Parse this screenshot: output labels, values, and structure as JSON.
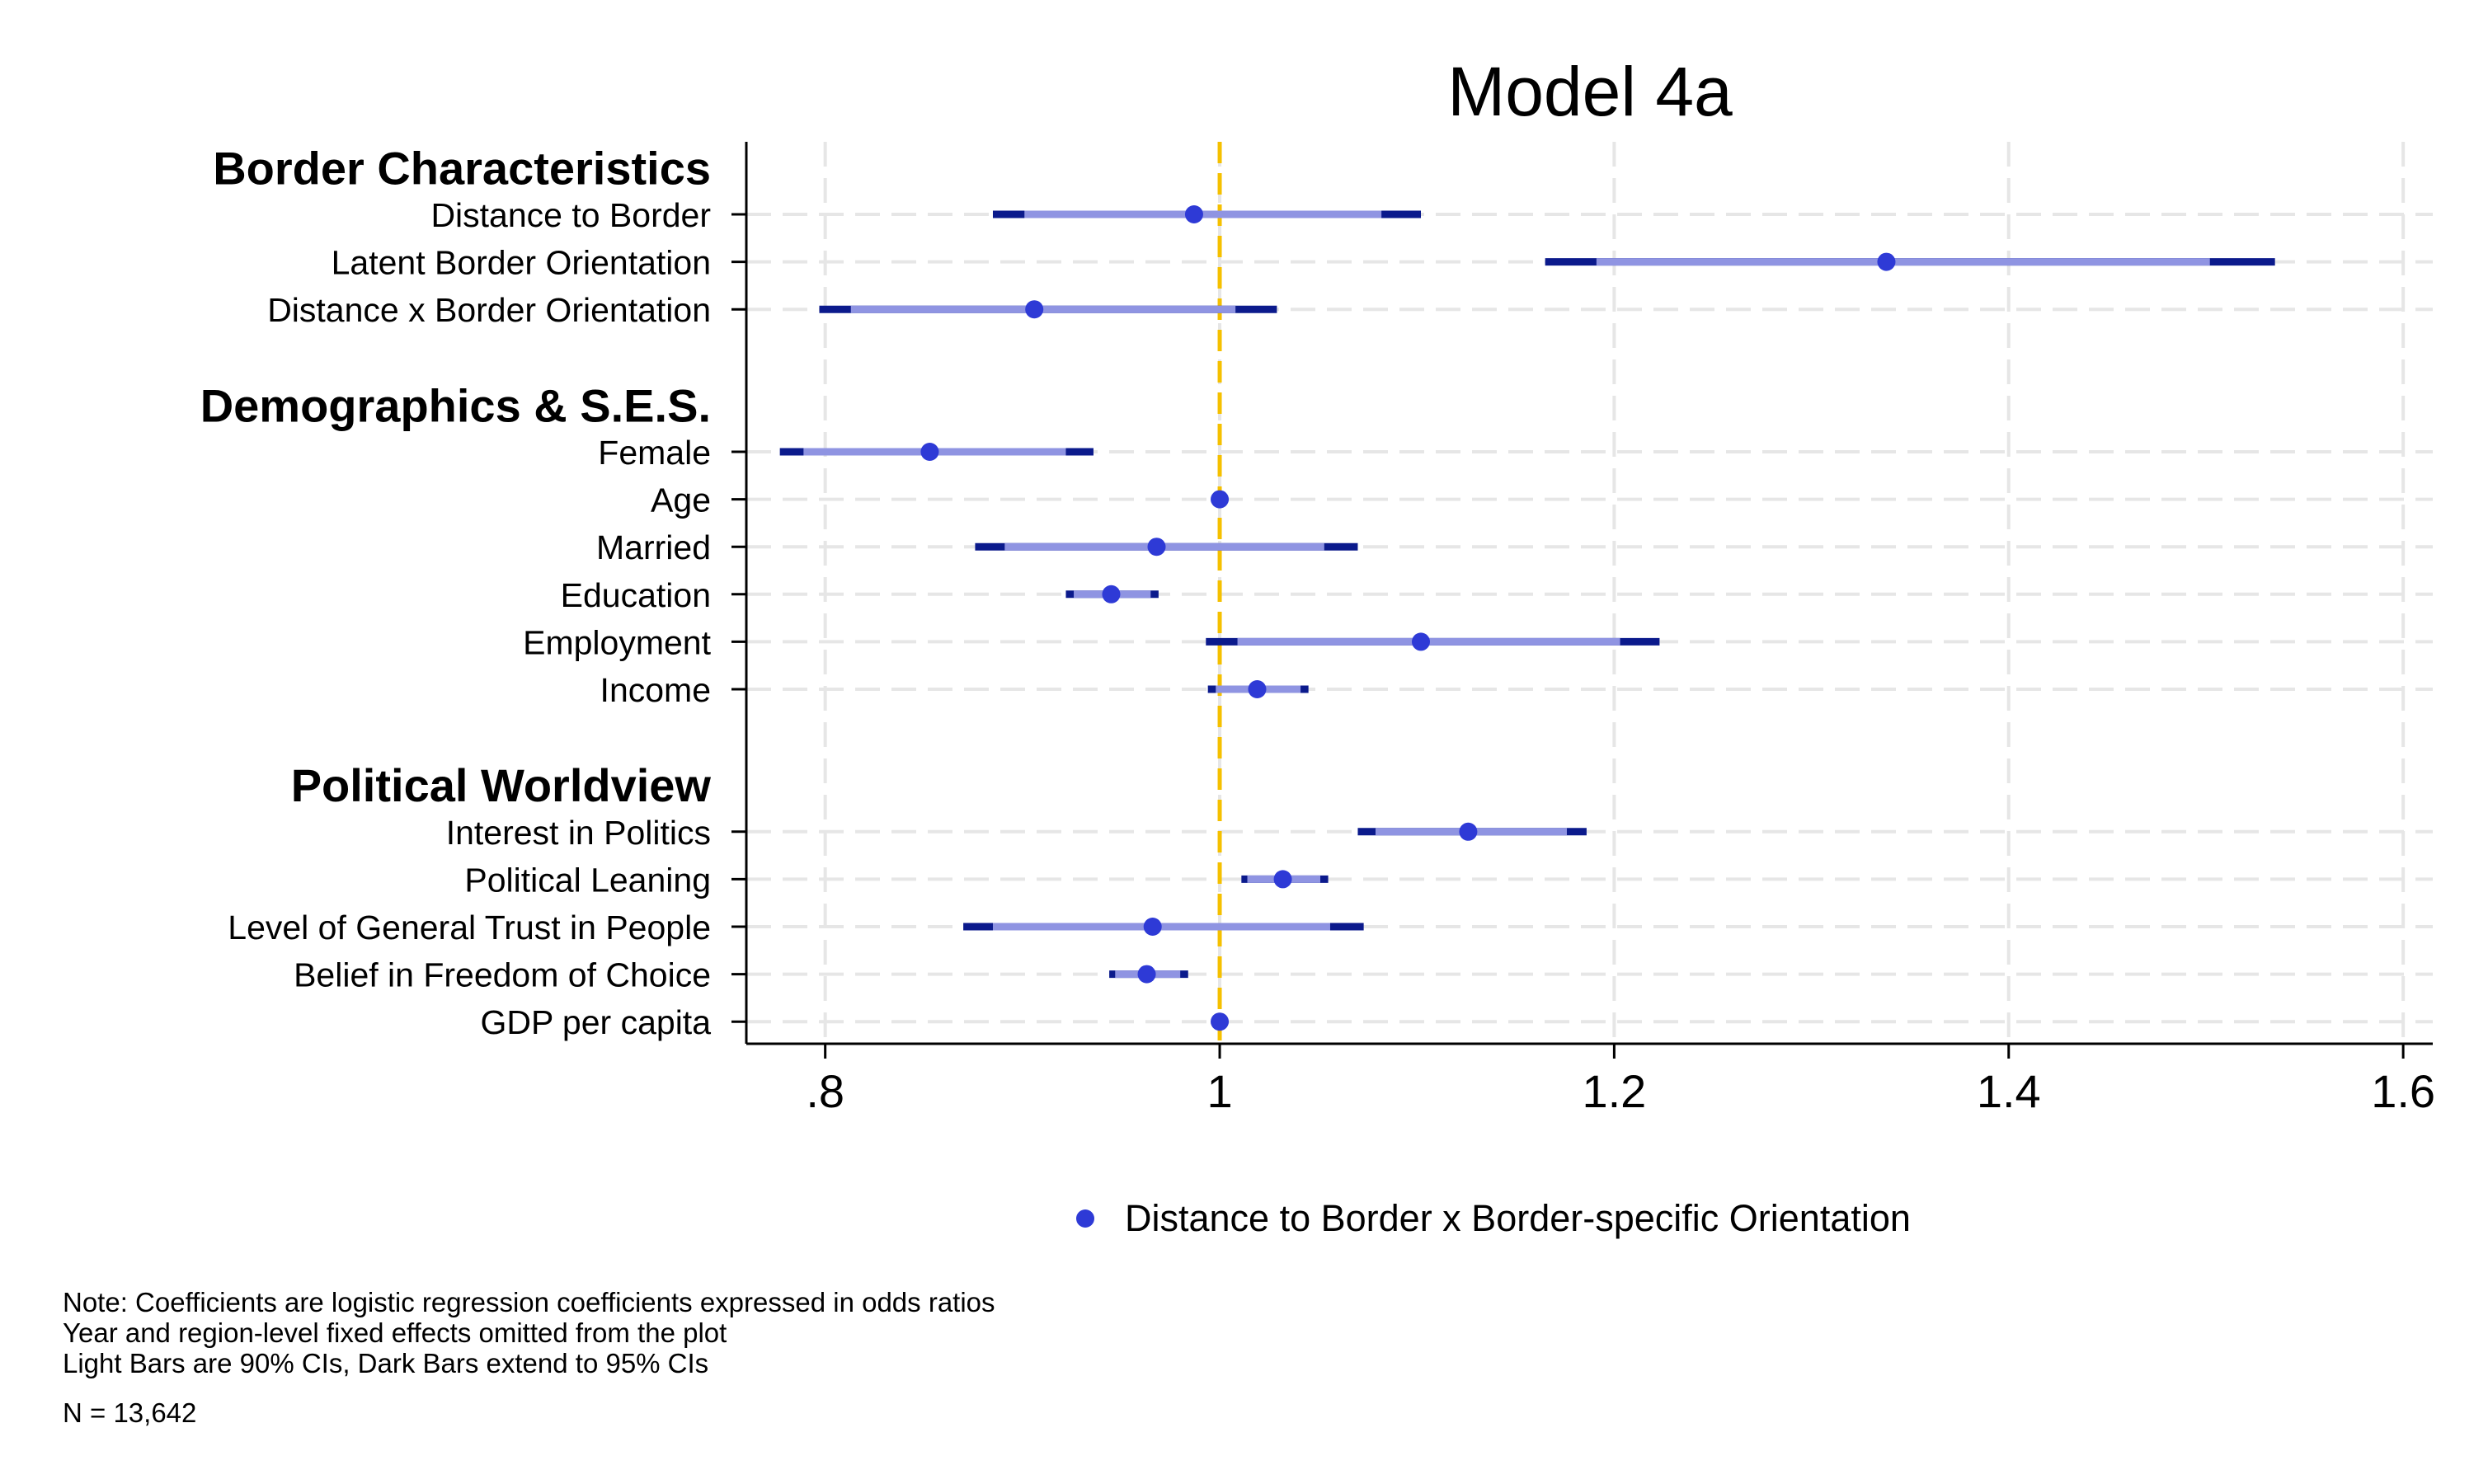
{
  "chart_data": {
    "type": "coefficient_plot",
    "title": "Model 4a",
    "x_ticks": [
      {
        "value": 0.8,
        "label": ".8"
      },
      {
        "value": 1.0,
        "label": "1"
      },
      {
        "value": 1.2,
        "label": "1.2"
      },
      {
        "value": 1.4,
        "label": "1.4"
      },
      {
        "value": 1.6,
        "label": "1.6"
      }
    ],
    "xlim": [
      0.76,
      1.615
    ],
    "reference_line": 1,
    "legend": {
      "label": "Distance to Border x Border-specific Orientation",
      "position": "bottom"
    },
    "groups": [
      {
        "heading": "Border Characteristics",
        "rows": [
          {
            "label": "Distance to Border",
            "estimate": 0.987,
            "ci90": [
              0.901,
              1.082
            ],
            "ci95": [
              0.885,
              1.102
            ]
          },
          {
            "label": "Latent Border Orientation",
            "estimate": 1.338,
            "ci90": [
              1.191,
              1.502
            ],
            "ci95": [
              1.165,
              1.535
            ]
          },
          {
            "label": "Distance x Border Orientation",
            "estimate": 0.906,
            "ci90": [
              0.813,
              1.008
            ],
            "ci95": [
              0.797,
              1.029
            ]
          }
        ]
      },
      {
        "heading": "Demographics & S.E.S.",
        "rows": [
          {
            "label": "Female",
            "estimate": 0.853,
            "ci90": [
              0.789,
              0.922
            ],
            "ci95": [
              0.777,
              0.936
            ]
          },
          {
            "label": "Age",
            "estimate": 1.0,
            "ci90": [
              0.999,
              1.001
            ],
            "ci95": [
              0.998,
              1.002
            ]
          },
          {
            "label": "Married",
            "estimate": 0.968,
            "ci90": [
              0.891,
              1.053
            ],
            "ci95": [
              0.876,
              1.07
            ]
          },
          {
            "label": "Education",
            "estimate": 0.945,
            "ci90": [
              0.926,
              0.965
            ],
            "ci95": [
              0.922,
              0.969
            ]
          },
          {
            "label": "Employment",
            "estimate": 1.102,
            "ci90": [
              1.009,
              1.203
            ],
            "ci95": [
              0.993,
              1.223
            ]
          },
          {
            "label": "Income",
            "estimate": 1.019,
            "ci90": [
              0.998,
              1.041
            ],
            "ci95": [
              0.994,
              1.045
            ]
          }
        ]
      },
      {
        "heading": "Political Worldview",
        "rows": [
          {
            "label": "Interest in Politics",
            "estimate": 1.126,
            "ci90": [
              1.079,
              1.176
            ],
            "ci95": [
              1.07,
              1.186
            ]
          },
          {
            "label": "Political Leaning",
            "estimate": 1.032,
            "ci90": [
              1.014,
              1.051
            ],
            "ci95": [
              1.011,
              1.055
            ]
          },
          {
            "label": "Level of General Trust in People",
            "estimate": 0.966,
            "ci90": [
              0.885,
              1.056
            ],
            "ci95": [
              0.87,
              1.073
            ]
          },
          {
            "label": "Belief in Freedom of Choice",
            "estimate": 0.963,
            "ci90": [
              0.947,
              0.98
            ],
            "ci95": [
              0.944,
              0.984
            ]
          },
          {
            "label": "GDP per capita",
            "estimate": 1.0,
            "ci90": [
              1.0,
              1.0
            ],
            "ci95": [
              1.0,
              1.0
            ]
          }
        ]
      }
    ]
  },
  "notes": {
    "line1": "Note: Coefficients are logistic regression coefficients expressed in odds ratios",
    "line2": "Year and region-level fixed effects omitted from the plot",
    "line3": "Light Bars are 90% CIs, Dark Bars extend to 95% CIs",
    "n": "N = 13,642"
  },
  "colors": {
    "point": "#2e3ad6",
    "ci90": "#8f94e2",
    "ci95": "#0b1a8c",
    "reference": "#f5c000",
    "grid": "#e6e6e6",
    "axis": "#000000"
  }
}
